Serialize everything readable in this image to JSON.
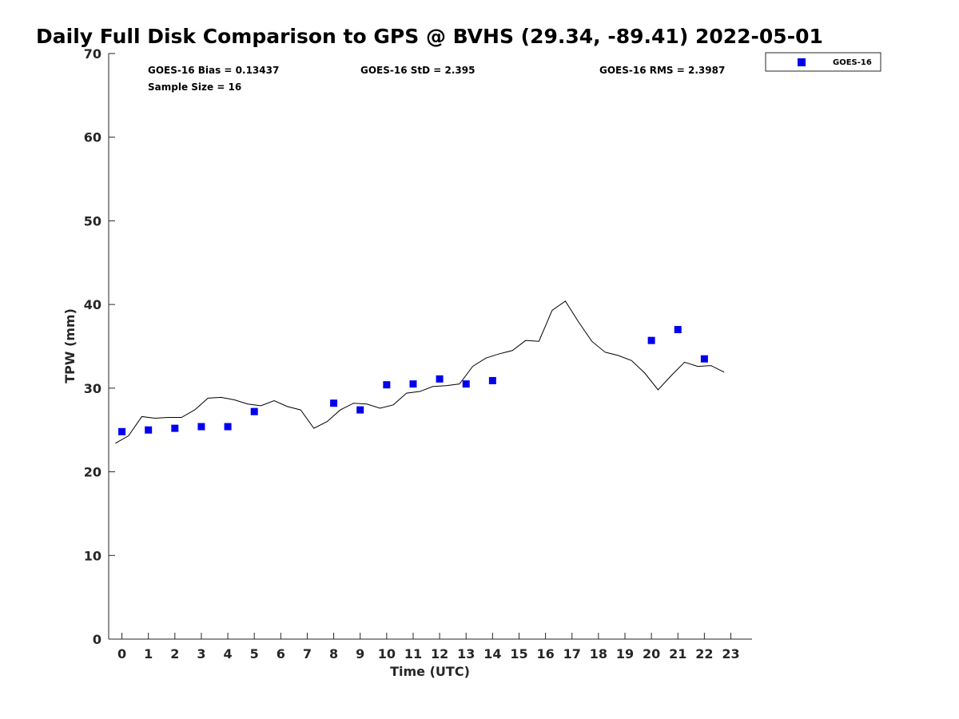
{
  "chart_data": {
    "type": "scatter",
    "title": "Daily Full Disk Comparison to GPS @ BVHS (29.34, -89.41) 2022-05-01",
    "xlabel": "Time (UTC)",
    "ylabel": "TPW (mm)",
    "xlim": [
      -0.5,
      23.8
    ],
    "ylim": [
      0,
      70
    ],
    "xticks": [
      0,
      1,
      2,
      3,
      4,
      5,
      6,
      7,
      8,
      9,
      10,
      11,
      12,
      13,
      14,
      15,
      16,
      17,
      18,
      19,
      20,
      21,
      22,
      23
    ],
    "yticks": [
      0,
      10,
      20,
      30,
      40,
      50,
      60,
      70
    ],
    "grid": false,
    "legend": {
      "position": "top-right",
      "entries": [
        "GOES-16"
      ]
    },
    "stats": {
      "bias": "GOES-16 Bias = 0.13437",
      "std": "GOES-16 StD = 2.395",
      "rms": "GOES-16 RMS = 2.3987",
      "sample": "Sample Size = 16"
    },
    "series": [
      {
        "name": "GOES-16",
        "type": "scatter",
        "color": "#0000ee",
        "x": [
          0,
          1,
          2,
          3,
          4,
          5,
          8,
          9,
          10,
          11,
          12,
          13,
          14,
          20,
          21,
          22
        ],
        "y": [
          24.8,
          25.0,
          25.2,
          25.4,
          25.4,
          27.2,
          28.2,
          27.4,
          30.4,
          30.5,
          31.1,
          30.5,
          30.9,
          35.7,
          37.0,
          33.5
        ]
      },
      {
        "type": "line",
        "color": "#000000",
        "x": [
          -0.25,
          0.25,
          0.75,
          1.25,
          1.75,
          2.25,
          2.75,
          3.25,
          3.75,
          4.25,
          4.75,
          5.25,
          5.75,
          6.25,
          6.75,
          7.25,
          7.75,
          8.25,
          8.75,
          9.25,
          9.75,
          10.25,
          10.75,
          11.25,
          11.75,
          12.25,
          12.75,
          13.25,
          13.75,
          14.25,
          14.75,
          15.25,
          15.75,
          16.25,
          16.75,
          17.25,
          17.75,
          18.25,
          18.75,
          19.25,
          19.75,
          20.25,
          20.75,
          21.25,
          21.75,
          22.25,
          22.75
        ],
        "y": [
          23.4,
          24.3,
          26.6,
          26.4,
          26.5,
          26.5,
          27.4,
          28.8,
          28.9,
          28.6,
          28.1,
          27.9,
          28.5,
          27.8,
          27.4,
          25.2,
          26.0,
          27.4,
          28.2,
          28.1,
          27.6,
          28.0,
          29.4,
          29.6,
          30.2,
          30.3,
          30.5,
          32.6,
          33.6,
          34.1,
          34.5,
          35.7,
          35.6,
          39.3,
          40.4,
          37.9,
          35.6,
          34.3,
          33.9,
          33.3,
          31.8,
          29.8,
          31.5,
          33.1,
          32.6,
          32.7,
          31.9
        ]
      }
    ]
  }
}
